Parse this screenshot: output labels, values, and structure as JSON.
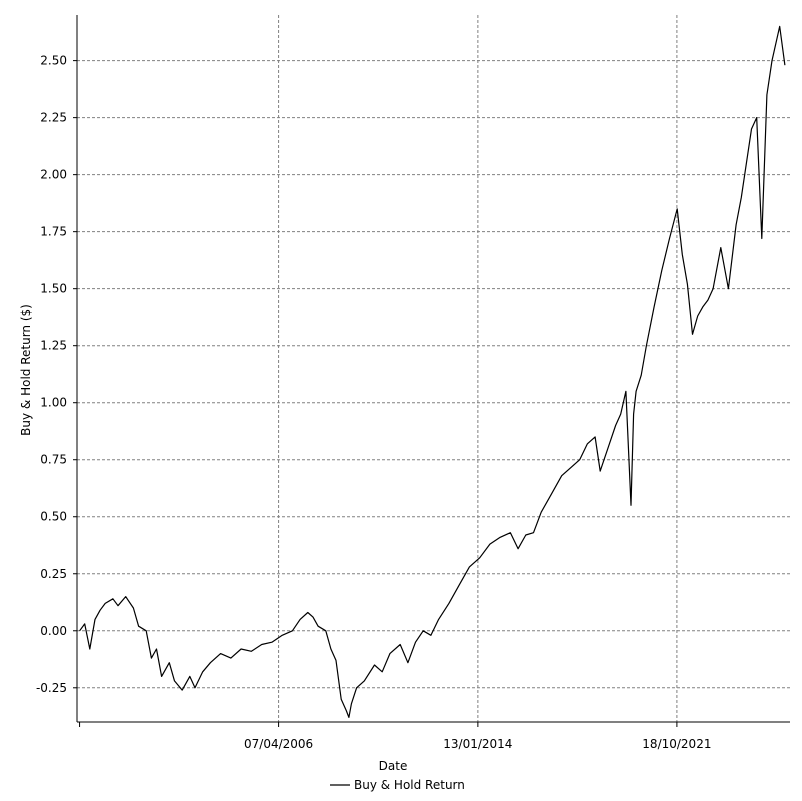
{
  "chart_data": {
    "type": "line",
    "title": "",
    "xlabel": "Date",
    "ylabel": "Buy & Hold Return ($)",
    "x_tick_labels": [
      "07/04/2006",
      "13/01/2014",
      "18/10/2021"
    ],
    "x_tick_years": [
      2006.26,
      2014.03,
      2021.79
    ],
    "y_tick_labels": [
      "-0.25",
      "0.00",
      "0.25",
      "0.50",
      "0.75",
      "1.00",
      "1.25",
      "1.50",
      "1.75",
      "2.00",
      "2.25",
      "2.50"
    ],
    "ylim": [
      -0.4,
      2.7
    ],
    "xlim_years": [
      1998.4,
      2026.2
    ],
    "grid": true,
    "legend_position": "bottom",
    "colors": {
      "series": "#000000",
      "grid": "#808080",
      "axis": "#000000"
    },
    "series": [
      {
        "name": "Buy & Hold Return",
        "x_years": [
          1998.5,
          1998.7,
          1998.9,
          1999.1,
          1999.3,
          1999.5,
          1999.8,
          2000.0,
          2000.3,
          2000.6,
          2000.8,
          2001.1,
          2001.3,
          2001.5,
          2001.7,
          2002.0,
          2002.2,
          2002.5,
          2002.8,
          2003.0,
          2003.3,
          2003.6,
          2004.0,
          2004.4,
          2004.8,
          2005.2,
          2005.6,
          2006.0,
          2006.4,
          2006.8,
          2007.1,
          2007.4,
          2007.6,
          2007.8,
          2008.1,
          2008.3,
          2008.5,
          2008.7,
          2008.9,
          2009.0,
          2009.1,
          2009.3,
          2009.6,
          2010.0,
          2010.3,
          2010.6,
          2011.0,
          2011.3,
          2011.6,
          2011.9,
          2012.2,
          2012.5,
          2012.9,
          2013.3,
          2013.7,
          2014.1,
          2014.5,
          2014.9,
          2015.3,
          2015.6,
          2015.9,
          2016.2,
          2016.5,
          2016.9,
          2017.3,
          2017.7,
          2018.0,
          2018.3,
          2018.6,
          2018.8,
          2019.1,
          2019.4,
          2019.6,
          2019.8,
          2020.0,
          2020.1,
          2020.2,
          2020.4,
          2020.6,
          2020.9,
          2021.2,
          2021.5,
          2021.8,
          2022.0,
          2022.2,
          2022.4,
          2022.6,
          2022.8,
          2023.0,
          2023.2,
          2023.5,
          2023.8,
          2024.1,
          2024.3,
          2024.5,
          2024.7,
          2024.9,
          2025.1,
          2025.3,
          2025.5,
          2025.8,
          2026.0
        ],
        "values": [
          0.0,
          0.03,
          -0.08,
          0.05,
          0.09,
          0.12,
          0.14,
          0.11,
          0.15,
          0.1,
          0.02,
          0.0,
          -0.12,
          -0.08,
          -0.2,
          -0.14,
          -0.22,
          -0.26,
          -0.2,
          -0.25,
          -0.18,
          -0.14,
          -0.1,
          -0.12,
          -0.08,
          -0.09,
          -0.06,
          -0.05,
          -0.02,
          0.0,
          0.05,
          0.08,
          0.06,
          0.02,
          0.0,
          -0.08,
          -0.13,
          -0.3,
          -0.35,
          -0.38,
          -0.32,
          -0.25,
          -0.22,
          -0.15,
          -0.18,
          -0.1,
          -0.06,
          -0.14,
          -0.05,
          0.0,
          -0.02,
          0.05,
          0.12,
          0.2,
          0.28,
          0.32,
          0.38,
          0.41,
          0.43,
          0.36,
          0.42,
          0.43,
          0.52,
          0.6,
          0.68,
          0.72,
          0.75,
          0.82,
          0.85,
          0.7,
          0.8,
          0.9,
          0.95,
          1.05,
          0.55,
          0.95,
          1.05,
          1.12,
          1.25,
          1.42,
          1.58,
          1.72,
          1.85,
          1.65,
          1.52,
          1.3,
          1.38,
          1.42,
          1.45,
          1.5,
          1.68,
          1.5,
          1.78,
          1.9,
          2.05,
          2.2,
          2.25,
          1.72,
          2.35,
          2.5,
          2.65,
          2.48
        ]
      }
    ]
  }
}
